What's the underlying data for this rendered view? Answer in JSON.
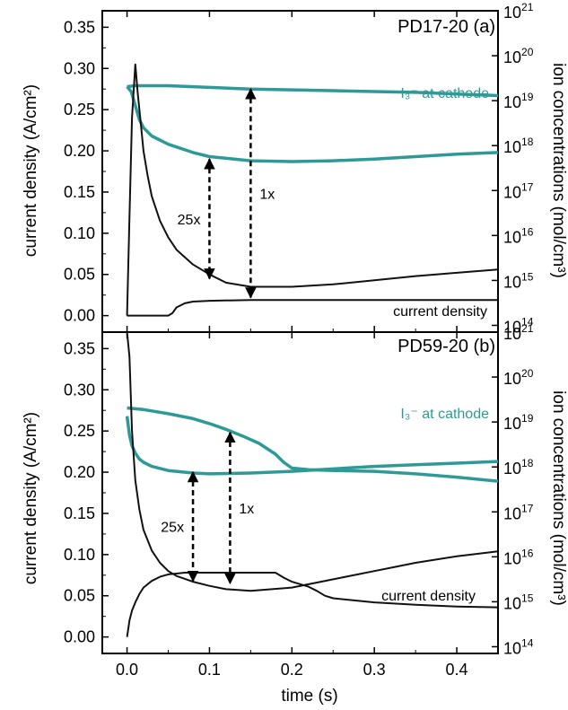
{
  "colors": {
    "teal": "#2e9a98",
    "black": "#111111"
  },
  "chart_data": {
    "type": "line",
    "xlabel": "time (s)",
    "x_ticks": [
      0.0,
      0.1,
      0.2,
      0.3,
      0.4
    ],
    "x_tick_labels": [
      "0.0",
      "0.1",
      "0.2",
      "0.3",
      "0.4"
    ],
    "xlim": [
      -0.03,
      0.45
    ],
    "ylabel_left": "current density (A/cm²)",
    "ylabel_right": "ion concentrations (mol/cm³)",
    "panels": [
      {
        "id": "a",
        "label": "PD17-20 (a)",
        "ylim_left": [
          -0.02,
          0.37
        ],
        "left_ticks": [
          0.0,
          0.05,
          0.1,
          0.15,
          0.2,
          0.25,
          0.3,
          0.35
        ],
        "left_tick_labels": [
          "0.00",
          "0.05",
          "0.10",
          "0.15",
          "0.20",
          "0.25",
          "0.30",
          "0.35"
        ],
        "right_log_range": [
          13.85,
          21.0
        ],
        "right_ticks": [
          14,
          15,
          16,
          17,
          18,
          19,
          20,
          21
        ],
        "series_labels": {
          "teal": "I₃⁻ at cathode",
          "current": "current density"
        },
        "series": [
          {
            "color": "teal",
            "x": [
              0.0,
              0.01,
              0.03,
              0.05,
              0.1,
              0.15,
              0.2,
              0.25,
              0.3,
              0.35,
              0.4,
              0.45
            ],
            "y": [
              0.278,
              0.279,
              0.279,
              0.279,
              0.277,
              0.275,
              0.274,
              0.273,
              0.272,
              0.271,
              0.269,
              0.267
            ]
          },
          {
            "color": "teal",
            "x": [
              0.0,
              0.005,
              0.01,
              0.015,
              0.02,
              0.03,
              0.05,
              0.08,
              0.1,
              0.13,
              0.15,
              0.2,
              0.25,
              0.3,
              0.35,
              0.4,
              0.45
            ],
            "y": [
              0.278,
              0.272,
              0.255,
              0.238,
              0.228,
              0.218,
              0.208,
              0.198,
              0.193,
              0.19,
              0.188,
              0.187,
              0.188,
              0.19,
              0.193,
              0.196,
              0.198
            ]
          },
          {
            "color": "black",
            "x": [
              0.0,
              0.003,
              0.006,
              0.01,
              0.013,
              0.017,
              0.02,
              0.025,
              0.03,
              0.04,
              0.05,
              0.06,
              0.08,
              0.1,
              0.12,
              0.15,
              0.2,
              0.25,
              0.3,
              0.35,
              0.4,
              0.45
            ],
            "y": [
              0.0,
              0.12,
              0.24,
              0.305,
              0.27,
              0.23,
              0.2,
              0.17,
              0.145,
              0.115,
              0.095,
              0.08,
              0.062,
              0.05,
              0.04,
              0.035,
              0.035,
              0.038,
              0.043,
              0.048,
              0.052,
              0.056
            ]
          },
          {
            "color": "black",
            "x": [
              0.0,
              0.05,
              0.055,
              0.06,
              0.07,
              0.08,
              0.1,
              0.15,
              0.2,
              0.25,
              0.3,
              0.35,
              0.4,
              0.45
            ],
            "y": [
              0.0,
              0.0,
              0.003,
              0.01,
              0.015,
              0.017,
              0.018,
              0.019,
              0.019,
              0.019,
              0.019,
              0.019,
              0.019,
              0.019
            ]
          }
        ],
        "arrows": [
          {
            "x": 0.1,
            "y_top": 0.19,
            "y_bottom": 0.045,
            "label": "25x"
          },
          {
            "x": 0.15,
            "y_top": 0.275,
            "y_bottom": 0.022,
            "label": "1x"
          }
        ]
      },
      {
        "id": "b",
        "label": "PD59-20 (b)",
        "ylim_left": [
          -0.02,
          0.37
        ],
        "left_ticks": [
          0.0,
          0.05,
          0.1,
          0.15,
          0.2,
          0.25,
          0.3,
          0.35
        ],
        "left_tick_labels": [
          "0.00",
          "0.05",
          "0.10",
          "0.15",
          "0.20",
          "0.25",
          "0.30",
          "0.35"
        ],
        "right_log_range": [
          13.85,
          21.0
        ],
        "right_ticks": [
          14,
          15,
          16,
          17,
          18,
          19,
          20,
          21
        ],
        "series_labels": {
          "teal": "I₃⁻ at cathode",
          "current": "current density"
        },
        "series": [
          {
            "color": "teal",
            "x": [
              0.0,
              0.02,
              0.05,
              0.08,
              0.1,
              0.12,
              0.14,
              0.16,
              0.18,
              0.19,
              0.2,
              0.22,
              0.25,
              0.3,
              0.35,
              0.4,
              0.45
            ],
            "y": [
              0.278,
              0.276,
              0.271,
              0.265,
              0.259,
              0.252,
              0.244,
              0.235,
              0.222,
              0.212,
              0.205,
              0.203,
              0.202,
              0.201,
              0.198,
              0.194,
              0.189
            ]
          },
          {
            "color": "teal",
            "x": [
              0.0,
              0.003,
              0.006,
              0.01,
              0.015,
              0.02,
              0.03,
              0.05,
              0.08,
              0.1,
              0.15,
              0.2,
              0.25,
              0.3,
              0.35,
              0.4,
              0.45
            ],
            "y": [
              0.268,
              0.245,
              0.232,
              0.223,
              0.216,
              0.212,
              0.207,
              0.202,
              0.199,
              0.198,
              0.199,
              0.201,
              0.204,
              0.207,
              0.209,
              0.211,
              0.213
            ]
          },
          {
            "color": "black",
            "x": [
              0.0,
              0.003,
              0.006,
              0.01,
              0.015,
              0.02,
              0.03,
              0.04,
              0.05,
              0.06,
              0.08,
              0.1,
              0.12,
              0.15,
              0.2,
              0.25,
              0.3,
              0.35,
              0.4,
              0.45
            ],
            "y": [
              0.37,
              0.34,
              0.25,
              0.19,
              0.155,
              0.13,
              0.105,
              0.09,
              0.08,
              0.074,
              0.067,
              0.062,
              0.058,
              0.056,
              0.06,
              0.07,
              0.08,
              0.09,
              0.098,
              0.104
            ]
          },
          {
            "color": "black",
            "x": [
              0.0,
              0.003,
              0.006,
              0.01,
              0.015,
              0.02,
              0.03,
              0.04,
              0.05,
              0.06,
              0.07,
              0.1,
              0.15,
              0.18,
              0.19,
              0.2,
              0.22,
              0.23,
              0.24,
              0.25,
              0.3,
              0.35,
              0.4,
              0.45
            ],
            "y": [
              0.0,
              0.02,
              0.032,
              0.042,
              0.052,
              0.06,
              0.068,
              0.073,
              0.076,
              0.077,
              0.078,
              0.078,
              0.078,
              0.078,
              0.072,
              0.067,
              0.061,
              0.056,
              0.05,
              0.047,
              0.042,
              0.039,
              0.037,
              0.036
            ]
          }
        ],
        "arrows": [
          {
            "x": 0.08,
            "y_top": 0.2,
            "y_bottom": 0.068,
            "label": "25x"
          },
          {
            "x": 0.125,
            "y_top": 0.248,
            "y_bottom": 0.065,
            "label": "1x"
          }
        ]
      }
    ]
  }
}
